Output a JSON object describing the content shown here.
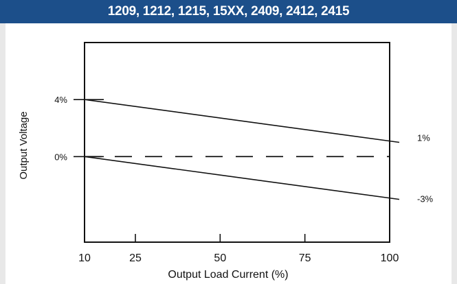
{
  "header": {
    "title": "1209, 1212, 1215, 15XX, 2409, 2412, 2415"
  },
  "chart_data": {
    "type": "line",
    "title": "1209, 1212, 1215, 15XX, 2409, 2412, 2415",
    "xlabel": "Output Load Current (%)",
    "ylabel": "Output Voltage",
    "xlim": [
      10,
      100
    ],
    "ylim": [
      -6,
      8
    ],
    "x_ticks": [
      10,
      25,
      50,
      75,
      100
    ],
    "x_tick_labels": [
      "10",
      "25",
      "50",
      "75",
      "100"
    ],
    "y_ticks": [
      4,
      0
    ],
    "y_tick_labels": [
      "4%",
      "0%"
    ],
    "grid": false,
    "series": [
      {
        "values": [
          [
            10,
            4
          ],
          [
            100,
            1
          ]
        ],
        "style": "solid",
        "end_label": "1%"
      },
      {
        "values": [
          [
            10,
            0
          ],
          [
            100,
            0
          ]
        ],
        "style": "dashed"
      },
      {
        "values": [
          [
            10,
            0
          ],
          [
            100,
            -3
          ]
        ],
        "style": "solid",
        "end_label": "-3%"
      }
    ]
  }
}
